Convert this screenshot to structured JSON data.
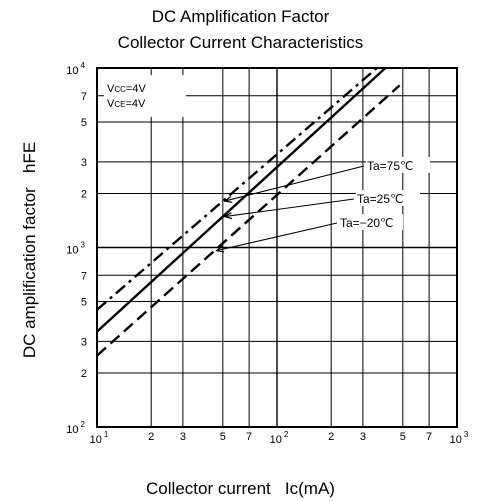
{
  "chart_data": {
    "type": "line",
    "title": "DC Amplification Factor",
    "subtitle": "Collector Current Characteristics",
    "xlabel": "Collector current   Ic(mA)",
    "ylabel": "DC amplification factor   hFE",
    "xscale": "log",
    "yscale": "log",
    "xlim": [
      10,
      1000
    ],
    "ylim": [
      100,
      10000
    ],
    "x_major_ticks": [
      {
        "base": "10",
        "exp": "1"
      },
      {
        "base": "10",
        "exp": "2"
      },
      {
        "base": "10",
        "exp": "3"
      }
    ],
    "x_minor_ticks": [
      "2",
      "3",
      "5",
      "7",
      "2",
      "3",
      "5",
      "7"
    ],
    "y_major_ticks": [
      {
        "base": "10",
        "exp": "2"
      },
      {
        "base": "10",
        "exp": "3"
      },
      {
        "base": "10",
        "exp": "4"
      }
    ],
    "y_minor_ticks": [
      "2",
      "3",
      "5",
      "7",
      "2",
      "3",
      "5",
      "7"
    ],
    "conditions": [
      {
        "main": "V",
        "sub": "CC",
        "rest": "=4V"
      },
      {
        "main": "V",
        "sub": "CE",
        "rest": "=4V"
      }
    ],
    "series": [
      {
        "name": "Ta=75℃",
        "style": "dash-dot",
        "x": [
          10,
          359
        ],
        "y": [
          450,
          10000
        ]
      },
      {
        "name": "Ta=25℃",
        "style": "solid",
        "x": [
          10,
          400
        ],
        "y": [
          340,
          10000
        ]
      },
      {
        "name": "Ta=−20℃",
        "style": "dashed",
        "x": [
          10,
          480
        ],
        "y": [
          250,
          8000
        ]
      }
    ],
    "annotations": [
      {
        "text": "Ta=75℃",
        "arrow_to_x": 50
      },
      {
        "text": "Ta=25℃",
        "arrow_to_x": 50
      },
      {
        "text": "Ta=−20℃",
        "arrow_to_x": 45
      }
    ],
    "grid": true,
    "legend": "none",
    "colors": {
      "line": "#000000",
      "grid": "#000000",
      "background": "#ffffff"
    }
  }
}
